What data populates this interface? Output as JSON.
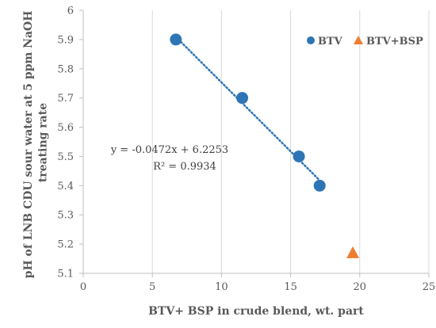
{
  "chart_data": {
    "type": "scatter",
    "xlabel": "BTV+ BSP in crude blend, wt. part",
    "ylabel_lines": [
      "pH of LNB CDU sour water at 5 ppm NaOH",
      "treating rate"
    ],
    "xlim": [
      0,
      25
    ],
    "ylim": [
      5.1,
      6.0
    ],
    "x_ticks": [
      0,
      5,
      10,
      15,
      20,
      25
    ],
    "y_ticks": [
      5.1,
      5.2,
      5.3,
      5.4,
      5.5,
      5.6,
      5.7,
      5.8,
      5.9,
      6
    ],
    "x_tick_labels": [
      "0",
      "5",
      "10",
      "15",
      "20",
      "25"
    ],
    "y_tick_labels": [
      "5.1",
      "5.2",
      "5.3",
      "5.4",
      "5.5",
      "5.6",
      "5.7",
      "5.8",
      "5.9",
      "6"
    ],
    "grid": "vertical",
    "legend_position": "top-right",
    "series": [
      {
        "name": "BTV",
        "marker": "circle",
        "color": "#2E75B6",
        "points": [
          {
            "x": 6.7,
            "y": 5.9
          },
          {
            "x": 11.5,
            "y": 5.7
          },
          {
            "x": 15.6,
            "y": 5.5
          },
          {
            "x": 17.1,
            "y": 5.4
          }
        ]
      },
      {
        "name": "BTV+BSP",
        "marker": "triangle",
        "color": "#ED7D31",
        "points": [
          {
            "x": 19.5,
            "y": 5.17
          }
        ]
      }
    ],
    "trendline": {
      "series": "BTV",
      "slope": -0.0472,
      "intercept": 6.2253,
      "x_range": [
        6.7,
        17.1
      ],
      "color": "#2E75B6",
      "style": "dotted",
      "equation": "y = -0.0472x + 6.2253",
      "r_squared": "R² = 0.9934"
    }
  }
}
